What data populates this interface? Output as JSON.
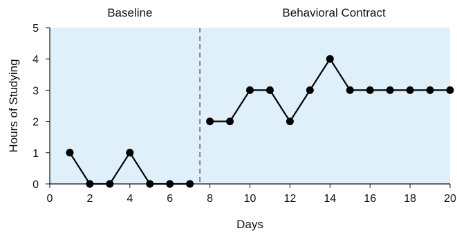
{
  "chart_data": {
    "type": "line",
    "title": "",
    "xlabel": "Days",
    "ylabel": "Hours of Studying",
    "xlim": [
      0,
      20
    ],
    "ylim": [
      0,
      5
    ],
    "x_ticks": [
      0,
      2,
      4,
      6,
      8,
      10,
      12,
      14,
      16,
      18,
      20
    ],
    "y_ticks": [
      0,
      1,
      2,
      3,
      4,
      5
    ],
    "grid": false,
    "phase_change_x": 7.5,
    "phases": [
      {
        "label": "Baseline",
        "x": [
          1,
          2,
          3,
          4,
          5,
          6,
          7
        ],
        "values": [
          1,
          0,
          0,
          1,
          0,
          0,
          0
        ]
      },
      {
        "label": "Behavioral Contract",
        "x": [
          8,
          9,
          10,
          11,
          12,
          13,
          14,
          15,
          16,
          17,
          18,
          19,
          20
        ],
        "values": [
          2,
          2,
          3,
          3,
          2,
          3,
          4,
          3,
          3,
          3,
          3,
          3,
          3
        ]
      }
    ],
    "colors": {
      "plot_background": "#dff0fa",
      "line": "#000000",
      "marker": "#000000",
      "axis": "#111111",
      "phase_line": "#555555"
    }
  }
}
